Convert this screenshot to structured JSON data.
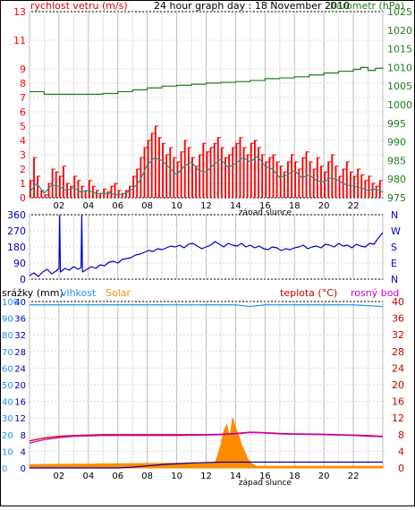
{
  "colors": {
    "wind": "#e00000",
    "gust": "#ff0000",
    "wind_avg": "#1a8f8f",
    "pressure": "#1f7a1f",
    "wind_dir": "#0000cc",
    "humidity": "#1e90ff",
    "solar": "#ff8c00",
    "temperature": "#cc0000",
    "dewpoint": "#cc00cc",
    "rain": "#0000aa",
    "grid": "#c0c0c0",
    "frame": "#000000",
    "axis_text": "#ff0000"
  },
  "chart_data": [
    {
      "type": "line",
      "title": "24 hour graph day : 18 November 2010",
      "left_axis_label": "rychlost vetru (m/s)",
      "right_axis_label": "barometr (hPa)",
      "left_ticks": [
        "0",
        "1",
        "2",
        "3",
        "4",
        "5",
        "6",
        "7",
        "8",
        "9",
        "11",
        "13"
      ],
      "left_tick_values": [
        0,
        1,
        2,
        3,
        4,
        5,
        6,
        7,
        8,
        9,
        11,
        13
      ],
      "ylim": [
        0,
        13
      ],
      "right_ticks": [
        "975",
        "980",
        "985",
        "990",
        "995",
        "1000",
        "1005",
        "1010",
        "1015",
        "1020",
        "1025"
      ],
      "right_ylim": [
        975,
        1025
      ],
      "x_ticks": [
        "02",
        "04",
        "06",
        "08",
        "10",
        "12",
        "14",
        "16",
        "18",
        "20",
        "22"
      ],
      "x_tick_hours": [
        2,
        4,
        6,
        8,
        10,
        12,
        14,
        16,
        18,
        20,
        22
      ],
      "xlim": [
        0,
        24
      ],
      "annotation": "západ slunce",
      "annotation_hour": 16.0,
      "series": [
        {
          "key": "wind_gust",
          "kind": "area-spikes",
          "x": [
            0.0,
            0.25,
            0.5,
            0.75,
            1.0,
            1.25,
            1.5,
            1.75,
            2.0,
            2.25,
            2.5,
            2.75,
            3.0,
            3.25,
            3.5,
            3.75,
            4.0,
            4.25,
            4.5,
            4.75,
            5.0,
            5.25,
            5.5,
            5.75,
            6.0,
            6.25,
            6.5,
            6.75,
            7.0,
            7.25,
            7.5,
            7.75,
            8.0,
            8.25,
            8.5,
            8.75,
            9.0,
            9.25,
            9.5,
            9.75,
            10.0,
            10.25,
            10.5,
            10.75,
            11.0,
            11.25,
            11.5,
            11.75,
            12.0,
            12.25,
            12.5,
            12.75,
            13.0,
            13.25,
            13.5,
            13.75,
            14.0,
            14.25,
            14.5,
            14.75,
            15.0,
            15.25,
            15.5,
            15.75,
            16.0,
            16.25,
            16.5,
            16.75,
            17.0,
            17.25,
            17.5,
            17.75,
            18.0,
            18.25,
            18.5,
            18.75,
            19.0,
            19.25,
            19.5,
            19.75,
            20.0,
            20.25,
            20.5,
            20.75,
            21.0,
            21.25,
            21.5,
            21.75,
            22.0,
            22.25,
            22.5,
            22.75,
            23.0,
            23.25,
            23.5,
            23.75,
            24.0
          ],
          "values": [
            1.2,
            2.8,
            1.5,
            0.5,
            0.2,
            1.0,
            2.0,
            1.8,
            1.5,
            2.2,
            1.0,
            0.8,
            1.5,
            1.2,
            0.8,
            0.5,
            1.2,
            0.8,
            0.5,
            0.3,
            0.6,
            0.4,
            0.8,
            1.0,
            0.5,
            0.3,
            0.5,
            0.8,
            1.5,
            2.0,
            2.8,
            3.5,
            4.0,
            4.5,
            5.0,
            4.2,
            3.8,
            3.0,
            3.5,
            2.8,
            2.5,
            3.2,
            4.0,
            3.5,
            2.8,
            2.2,
            3.0,
            3.8,
            3.2,
            3.5,
            3.8,
            4.2,
            3.5,
            2.8,
            3.0,
            3.5,
            3.8,
            4.2,
            3.5,
            3.0,
            3.8,
            4.0,
            3.5,
            3.0,
            2.5,
            2.8,
            3.0,
            2.5,
            2.2,
            1.8,
            2.5,
            3.0,
            2.5,
            2.0,
            2.8,
            3.2,
            2.5,
            2.0,
            2.8,
            2.2,
            1.8,
            2.5,
            3.0,
            2.2,
            1.5,
            2.0,
            2.5,
            1.8,
            1.5,
            2.0,
            1.6,
            1.2,
            1.5,
            1.0,
            0.8,
            1.2,
            1.0
          ]
        },
        {
          "key": "wind_avg",
          "kind": "line",
          "x": [
            0.0,
            0.5,
            1.0,
            1.5,
            2.0,
            2.5,
            3.0,
            3.5,
            4.0,
            4.5,
            5.0,
            5.5,
            6.0,
            6.5,
            7.0,
            7.5,
            8.0,
            8.5,
            9.0,
            9.5,
            10.0,
            10.5,
            11.0,
            11.5,
            12.0,
            12.5,
            13.0,
            13.5,
            14.0,
            14.5,
            15.0,
            15.5,
            16.0,
            16.5,
            17.0,
            17.5,
            18.0,
            18.5,
            19.0,
            19.5,
            20.0,
            20.5,
            21.0,
            21.5,
            22.0,
            22.5,
            23.0,
            23.5,
            24.0
          ],
          "values": [
            0.4,
            1.0,
            0.3,
            0.9,
            0.8,
            0.5,
            0.7,
            0.4,
            0.5,
            0.3,
            0.3,
            0.3,
            0.2,
            0.3,
            0.6,
            1.2,
            2.3,
            2.8,
            2.6,
            2.1,
            1.6,
            2.2,
            2.5,
            1.9,
            1.8,
            2.3,
            2.7,
            2.1,
            2.4,
            2.8,
            2.5,
            2.9,
            2.2,
            2.0,
            1.4,
            1.6,
            1.9,
            1.4,
            1.6,
            1.2,
            1.1,
            1.4,
            1.2,
            0.9,
            0.8,
            0.7,
            0.5,
            0.6,
            0.4
          ]
        },
        {
          "key": "pressure",
          "kind": "step",
          "axis": "right",
          "x": [
            0.0,
            1.0,
            2.0,
            3.0,
            4.0,
            5.0,
            6.0,
            7.0,
            8.0,
            9.0,
            10.0,
            11.0,
            12.0,
            13.0,
            14.0,
            15.0,
            16.0,
            17.0,
            18.0,
            19.0,
            20.0,
            21.0,
            22.0,
            22.5,
            23.0,
            23.5,
            24.0
          ],
          "values": [
            1003.5,
            1002.8,
            1002.8,
            1002.8,
            1002.8,
            1003.0,
            1003.5,
            1004.0,
            1004.5,
            1005.0,
            1005.2,
            1005.5,
            1005.8,
            1006.0,
            1006.2,
            1006.5,
            1007.0,
            1007.2,
            1007.5,
            1008.0,
            1008.5,
            1009.0,
            1009.5,
            1010.0,
            1009.2,
            1009.8,
            1010.0
          ]
        }
      ]
    },
    {
      "type": "line",
      "left_ticks": [
        "0",
        "90",
        "180",
        "270",
        "360"
      ],
      "left_tick_values": [
        0,
        90,
        180,
        270,
        360
      ],
      "ylim": [
        0,
        360
      ],
      "right_ticks": [
        "N",
        "W",
        "S",
        "E",
        "N"
      ],
      "right_tick_values": [
        360,
        270,
        180,
        90,
        0
      ],
      "xlim": [
        0,
        24
      ],
      "series": [
        {
          "key": "wind_dir",
          "x": [
            0.0,
            0.3,
            0.6,
            0.9,
            1.2,
            1.5,
            1.8,
            2.0,
            2.05,
            2.1,
            2.4,
            2.7,
            3.0,
            3.3,
            3.5,
            3.55,
            3.6,
            3.9,
            4.2,
            4.5,
            4.8,
            5.1,
            5.4,
            5.7,
            6.0,
            6.3,
            6.6,
            6.9,
            7.2,
            7.5,
            7.8,
            8.1,
            8.4,
            8.7,
            9.0,
            9.3,
            9.6,
            9.9,
            10.2,
            10.5,
            10.8,
            11.1,
            11.4,
            11.7,
            12.0,
            12.3,
            12.6,
            12.9,
            13.2,
            13.5,
            13.8,
            14.1,
            14.4,
            14.7,
            15.0,
            15.3,
            15.6,
            15.9,
            16.2,
            16.5,
            16.8,
            17.1,
            17.4,
            17.7,
            18.0,
            18.3,
            18.6,
            18.9,
            19.2,
            19.5,
            19.8,
            20.1,
            20.4,
            20.7,
            21.0,
            21.3,
            21.6,
            21.9,
            22.2,
            22.5,
            22.8,
            23.1,
            23.4,
            23.7,
            24.0
          ],
          "values": [
            20,
            35,
            15,
            40,
            55,
            30,
            45,
            60,
            355,
            40,
            60,
            50,
            70,
            55,
            65,
            360,
            40,
            55,
            70,
            60,
            80,
            75,
            95,
            100,
            90,
            110,
            115,
            120,
            135,
            140,
            150,
            160,
            155,
            170,
            165,
            175,
            185,
            180,
            190,
            175,
            195,
            200,
            185,
            170,
            180,
            190,
            210,
            195,
            180,
            200,
            190,
            185,
            200,
            180,
            190,
            175,
            185,
            170,
            165,
            180,
            175,
            160,
            170,
            165,
            175,
            180,
            190,
            170,
            180,
            185,
            175,
            195,
            190,
            180,
            200,
            185,
            190,
            175,
            195,
            185,
            180,
            200,
            195,
            230,
            260
          ]
        }
      ]
    },
    {
      "type": "line",
      "left_axis_label": "srážky (mm)",
      "legend": [
        "vlhkost",
        "Solar",
        "teplota (°C)",
        "rosný bod"
      ],
      "left_ticks": [
        "0",
        "4",
        "8",
        "12",
        "16",
        "20",
        "24",
        "28",
        "32",
        "36",
        "40"
      ],
      "left_tick_values": [
        0,
        4,
        8,
        12,
        16,
        20,
        24,
        28,
        32,
        36,
        40
      ],
      "ylim": [
        0,
        40
      ],
      "humidity_ticks": [
        "0",
        "10",
        "20",
        "30",
        "40",
        "50",
        "60",
        "70",
        "80",
        "90",
        "100"
      ],
      "humidity_tick_values": [
        0,
        10,
        20,
        30,
        40,
        50,
        60,
        70,
        80,
        90,
        100
      ],
      "right_ticks": [
        "0",
        "4",
        "8",
        "12",
        "16",
        "20",
        "24",
        "28",
        "32",
        "36",
        "40"
      ],
      "right_tick_values": [
        0,
        4,
        8,
        12,
        16,
        20,
        24,
        28,
        32,
        36,
        40
      ],
      "x_ticks": [
        "02",
        "04",
        "06",
        "08",
        "10",
        "12",
        "14",
        "16",
        "18",
        "20",
        "22"
      ],
      "x_tick_hours": [
        2,
        4,
        6,
        8,
        10,
        12,
        14,
        16,
        18,
        20,
        22
      ],
      "xlim": [
        0,
        24
      ],
      "annotation": "západ slunce",
      "annotation_hour": 16.0,
      "series": [
        {
          "key": "humidity",
          "unit": "%",
          "x": [
            0,
            2,
            4,
            6,
            8,
            10,
            12,
            13,
            14,
            15,
            16,
            18,
            20,
            22,
            24
          ],
          "values": [
            98,
            98,
            98,
            98,
            98,
            98,
            98,
            98,
            98,
            97,
            98,
            98,
            98,
            98,
            97
          ]
        },
        {
          "key": "temperature",
          "unit": "°C",
          "x": [
            0,
            1,
            2,
            3,
            4,
            5,
            6,
            8,
            10,
            12,
            13,
            14,
            15,
            16,
            17,
            18,
            20,
            22,
            23,
            24
          ],
          "values": [
            6.5,
            7.2,
            7.6,
            7.8,
            7.9,
            8.0,
            8.0,
            8.0,
            8.0,
            8.0,
            8.1,
            8.3,
            8.6,
            8.5,
            8.3,
            8.2,
            8.1,
            7.9,
            7.8,
            7.6
          ]
        },
        {
          "key": "dewpoint",
          "unit": "°C",
          "x": [
            0,
            1,
            2,
            3,
            4,
            5,
            6,
            8,
            10,
            12,
            13,
            14,
            15,
            16,
            17,
            18,
            20,
            22,
            23,
            24
          ],
          "values": [
            6.0,
            6.8,
            7.3,
            7.6,
            7.7,
            7.8,
            7.8,
            7.8,
            7.8,
            7.9,
            8.0,
            8.2,
            8.5,
            8.4,
            8.2,
            8.1,
            8.0,
            7.8,
            7.6,
            7.5
          ]
        },
        {
          "key": "rain",
          "unit": "mm",
          "x": [
            0,
            6,
            7,
            8,
            9,
            10,
            11,
            12,
            13,
            24
          ],
          "values": [
            0,
            0,
            0.2,
            0.5,
            0.8,
            1.0,
            1.2,
            1.3,
            1.4,
            1.4
          ]
        },
        {
          "key": "solar",
          "kind": "area",
          "x": [
            0,
            12.6,
            12.8,
            13.0,
            13.2,
            13.4,
            13.6,
            13.8,
            14.0,
            14.2,
            14.4,
            14.6,
            14.8,
            15.0,
            15.2,
            15.4,
            24
          ],
          "values": [
            2,
            3,
            8,
            14,
            22,
            26,
            18,
            30,
            24,
            20,
            14,
            10,
            6,
            3,
            2,
            1,
            1
          ]
        }
      ]
    }
  ]
}
